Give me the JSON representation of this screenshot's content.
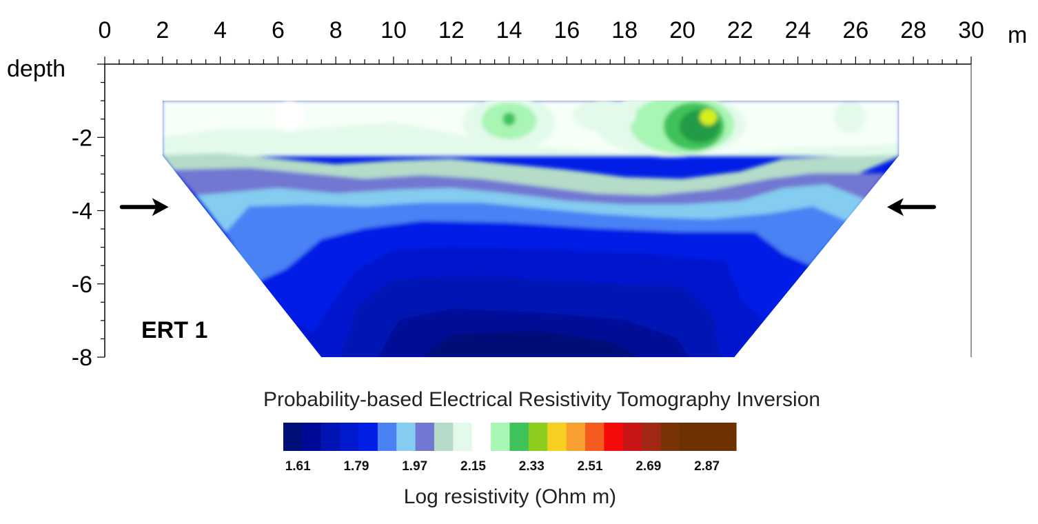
{
  "chart_data": {
    "type": "heatmap",
    "title": "Probability-based Electrical Resistivity Tomography Inversion",
    "section_label": "ERT 1",
    "xlabel": "m",
    "ylabel": "depth",
    "x_unit": "m",
    "xlim": [
      0,
      30
    ],
    "ylim": [
      -8,
      0
    ],
    "x_ticks": [
      "0",
      "2",
      "4",
      "6",
      "8",
      "10",
      "12",
      "14",
      "16",
      "18",
      "20",
      "22",
      "24",
      "26",
      "28",
      "30"
    ],
    "x_tick_values": [
      0,
      2,
      4,
      6,
      8,
      10,
      12,
      14,
      16,
      18,
      20,
      22,
      24,
      26,
      28,
      30
    ],
    "y_ticks": [
      "-2",
      "-4",
      "-6",
      "-8"
    ],
    "y_tick_values": [
      -2,
      -4,
      -6,
      -8
    ],
    "section_outline": [
      [
        2,
        -1
      ],
      [
        27.5,
        -1
      ],
      [
        27.5,
        -2.5
      ],
      [
        21.8,
        -8
      ],
      [
        7.5,
        -8
      ],
      [
        2,
        -2.5
      ]
    ],
    "section_top_depth": -1,
    "section_bottom_depth": -8,
    "arrows": [
      {
        "name": "left-arrow",
        "direction": "right",
        "x": 1.4,
        "depth": -3.9
      },
      {
        "name": "right-arrow",
        "direction": "left",
        "x": 27.9,
        "depth": -3.9
      }
    ],
    "colorbar": {
      "label": "Log resistivity (Ohm m)",
      "tick_labels": [
        "1.61",
        "1.79",
        "1.97",
        "2.15",
        "2.33",
        "2.51",
        "2.69",
        "2.87"
      ],
      "tick_values": [
        1.61,
        1.79,
        1.97,
        2.15,
        2.33,
        2.51,
        2.69,
        2.87
      ],
      "min": 1.565,
      "max": 2.96,
      "colors": [
        "#000f78",
        "#000a96",
        "#0014b4",
        "#0019cd",
        "#001ee6",
        "#4a82f4",
        "#84ccf0",
        "#7277d2",
        "#b4dcc8",
        "#e3faea",
        "#ffffff",
        "#a8f5b4",
        "#3fc25a",
        "#8ccd1e",
        "#f5d020",
        "#f8a030",
        "#f55a1e",
        "#f50a0a",
        "#c81414",
        "#a02814",
        "#783205",
        "#6e3200",
        "#6e3200",
        "#6e3200"
      ]
    },
    "contour_layers": [
      {
        "name": "layer-top-white",
        "color": "#f6fff8",
        "poly": [
          [
            2,
            -1
          ],
          [
            27.5,
            -1
          ],
          [
            27.5,
            -2.5
          ],
          [
            2,
            -2.5
          ]
        ]
      },
      {
        "name": "layer-pale-green",
        "color": "#e3faea",
        "poly": [
          [
            2,
            -2
          ],
          [
            4,
            -1.8
          ],
          [
            7,
            -1.8
          ],
          [
            10,
            -1.6
          ],
          [
            12,
            -1.9
          ],
          [
            14,
            -2.2
          ],
          [
            17,
            -2.4
          ],
          [
            19,
            -2.5
          ],
          [
            21,
            -2.5
          ],
          [
            24,
            -2.3
          ],
          [
            27.5,
            -2.2
          ],
          [
            27.5,
            -2.5
          ],
          [
            2,
            -2.5
          ]
        ]
      },
      {
        "name": "layer-mint",
        "color": "#b4dcc8",
        "poly": [
          [
            2,
            -2.5
          ],
          [
            4,
            -2.45
          ],
          [
            6,
            -2.6
          ],
          [
            8,
            -2.75
          ],
          [
            10,
            -2.65
          ],
          [
            12,
            -2.6
          ],
          [
            14,
            -2.75
          ],
          [
            16,
            -2.9
          ],
          [
            18,
            -3.1
          ],
          [
            20,
            -3.15
          ],
          [
            22,
            -2.95
          ],
          [
            23.5,
            -2.6
          ],
          [
            25,
            -2.55
          ],
          [
            27.5,
            -2.5
          ],
          [
            27.5,
            -2.5
          ],
          [
            26,
            -3.0
          ],
          [
            24.5,
            -3.0
          ],
          [
            23,
            -3.15
          ],
          [
            21,
            -3.45
          ],
          [
            19,
            -3.6
          ],
          [
            17,
            -3.55
          ],
          [
            15,
            -3.35
          ],
          [
            13,
            -3.15
          ],
          [
            11,
            -3.05
          ],
          [
            9,
            -3.15
          ],
          [
            7,
            -3.0
          ],
          [
            5,
            -2.85
          ],
          [
            2.4,
            -2.9
          ]
        ]
      },
      {
        "name": "layer-lavender",
        "color": "#7277d2",
        "poly": [
          [
            2.4,
            -2.9
          ],
          [
            5,
            -2.85
          ],
          [
            7,
            -3.0
          ],
          [
            9,
            -3.15
          ],
          [
            11,
            -3.05
          ],
          [
            13,
            -3.15
          ],
          [
            15,
            -3.35
          ],
          [
            17,
            -3.55
          ],
          [
            19,
            -3.6
          ],
          [
            21,
            -3.45
          ],
          [
            23,
            -3.15
          ],
          [
            24.5,
            -3.0
          ],
          [
            26,
            -3.0
          ],
          [
            27,
            -3.0
          ],
          [
            26.3,
            -3.7
          ],
          [
            25,
            -3.3
          ],
          [
            23.5,
            -3.4
          ],
          [
            22,
            -3.75
          ],
          [
            20,
            -3.85
          ],
          [
            18,
            -3.85
          ],
          [
            16,
            -3.75
          ],
          [
            14,
            -3.55
          ],
          [
            12,
            -3.4
          ],
          [
            10,
            -3.45
          ],
          [
            8,
            -3.55
          ],
          [
            6,
            -3.4
          ],
          [
            3.2,
            -3.6
          ]
        ]
      },
      {
        "name": "layer-light-blue",
        "color": "#84ccf0",
        "poly": [
          [
            3.2,
            -3.6
          ],
          [
            6,
            -3.4
          ],
          [
            8,
            -3.55
          ],
          [
            10,
            -3.45
          ],
          [
            12,
            -3.4
          ],
          [
            14,
            -3.55
          ],
          [
            16,
            -3.75
          ],
          [
            18,
            -3.85
          ],
          [
            20,
            -3.85
          ],
          [
            22,
            -3.75
          ],
          [
            23.5,
            -3.4
          ],
          [
            25,
            -3.3
          ],
          [
            26.3,
            -3.7
          ],
          [
            25.7,
            -4.3
          ],
          [
            24.5,
            -3.9
          ],
          [
            23,
            -4.1
          ],
          [
            21,
            -4.25
          ],
          [
            19,
            -4.2
          ],
          [
            17,
            -4.1
          ],
          [
            15,
            -3.95
          ],
          [
            13,
            -3.8
          ],
          [
            11,
            -3.8
          ],
          [
            9,
            -3.9
          ],
          [
            7,
            -3.85
          ],
          [
            5,
            -3.9
          ],
          [
            4.2,
            -4.6
          ]
        ]
      },
      {
        "name": "layer-cornflower",
        "color": "#4a82f4",
        "poly": [
          [
            4.2,
            -4.6
          ],
          [
            5,
            -3.9
          ],
          [
            7,
            -3.85
          ],
          [
            9,
            -3.9
          ],
          [
            11,
            -3.8
          ],
          [
            13,
            -3.8
          ],
          [
            15,
            -3.95
          ],
          [
            17,
            -4.1
          ],
          [
            19,
            -4.2
          ],
          [
            21,
            -4.25
          ],
          [
            23,
            -4.1
          ],
          [
            24.5,
            -3.9
          ],
          [
            25.7,
            -4.3
          ],
          [
            24.4,
            -5.5
          ],
          [
            23.5,
            -5.2
          ],
          [
            22.5,
            -4.6
          ],
          [
            20,
            -4.6
          ],
          [
            17,
            -4.5
          ],
          [
            14,
            -4.35
          ],
          [
            11,
            -4.3
          ],
          [
            9,
            -4.5
          ],
          [
            7.5,
            -4.8
          ],
          [
            6.3,
            -5.6
          ],
          [
            5.2,
            -6.0
          ]
        ]
      },
      {
        "name": "layer-blue",
        "color": "#001ee6",
        "poly": [
          [
            5.2,
            -6.0
          ],
          [
            6.3,
            -5.6
          ],
          [
            7.5,
            -4.8
          ],
          [
            9,
            -4.5
          ],
          [
            11,
            -4.3
          ],
          [
            14,
            -4.35
          ],
          [
            17,
            -4.5
          ],
          [
            20,
            -4.6
          ],
          [
            22.5,
            -4.6
          ],
          [
            23.5,
            -5.2
          ],
          [
            24.4,
            -5.5
          ],
          [
            22.8,
            -7.0
          ],
          [
            22,
            -6.4
          ],
          [
            21.5,
            -5.4
          ],
          [
            19,
            -5.2
          ],
          [
            16,
            -5.1
          ],
          [
            12,
            -5.0
          ],
          [
            10,
            -5.1
          ],
          [
            8.8,
            -5.6
          ],
          [
            8,
            -6.4
          ],
          [
            7.2,
            -7.4
          ],
          [
            6.5,
            -7.0
          ]
        ]
      },
      {
        "name": "layer-deep-blue",
        "color": "#0019cd",
        "poly": [
          [
            6.5,
            -7.0
          ],
          [
            7.2,
            -7.4
          ],
          [
            8,
            -6.4
          ],
          [
            8.8,
            -5.6
          ],
          [
            10,
            -5.1
          ],
          [
            12,
            -5.0
          ],
          [
            16,
            -5.1
          ],
          [
            19,
            -5.2
          ],
          [
            21.5,
            -5.4
          ],
          [
            22,
            -6.4
          ],
          [
            22.8,
            -7.0
          ],
          [
            21.8,
            -8
          ],
          [
            7.5,
            -8
          ]
        ]
      },
      {
        "name": "layer-darker-blue",
        "color": "#0014b4",
        "poly": [
          [
            8.2,
            -8
          ],
          [
            8.8,
            -6.6
          ],
          [
            10,
            -5.9
          ],
          [
            13,
            -5.8
          ],
          [
            17,
            -6.0
          ],
          [
            20,
            -6.1
          ],
          [
            21,
            -6.8
          ],
          [
            21.3,
            -8
          ]
        ]
      },
      {
        "name": "layer-navy",
        "color": "#000a96",
        "poly": [
          [
            9.5,
            -8
          ],
          [
            10.2,
            -7.0
          ],
          [
            12,
            -6.7
          ],
          [
            15,
            -6.8
          ],
          [
            18,
            -7.0
          ],
          [
            19.8,
            -7.5
          ],
          [
            20.2,
            -8
          ]
        ]
      },
      {
        "name": "layer-darkest-navy",
        "color": "#000f78",
        "poly": [
          [
            11,
            -8
          ],
          [
            12,
            -7.4
          ],
          [
            15,
            -7.3
          ],
          [
            17.5,
            -7.6
          ],
          [
            18.5,
            -8
          ]
        ]
      }
    ],
    "anomalies": [
      {
        "name": "anomaly-x14-outer",
        "color": "#e3faea",
        "cx": 14.0,
        "cy": -1.6,
        "rx": 1.6,
        "ry": 0.75
      },
      {
        "name": "anomaly-x14-mid",
        "color": "#a8f5b4",
        "cx": 14.0,
        "cy": -1.55,
        "rx": 0.95,
        "ry": 0.5
      },
      {
        "name": "anomaly-x14-core",
        "color": "#3fc25a",
        "cx": 14.0,
        "cy": -1.5,
        "rx": 0.22,
        "ry": 0.18
      },
      {
        "name": "anomaly-x20-outer",
        "color": "#e3faea",
        "cx": 19.6,
        "cy": -1.65,
        "rx": 2.6,
        "ry": 0.9
      },
      {
        "name": "anomaly-x20-mid",
        "color": "#a8f5b4",
        "cx": 20.0,
        "cy": -1.65,
        "rx": 1.8,
        "ry": 0.8
      },
      {
        "name": "anomaly-x20-green",
        "color": "#3fc25a",
        "cx": 20.4,
        "cy": -1.7,
        "rx": 1.05,
        "ry": 0.65
      },
      {
        "name": "anomaly-x20-darkgreen",
        "color": "#239b46",
        "cx": 20.6,
        "cy": -1.7,
        "rx": 0.7,
        "ry": 0.45
      },
      {
        "name": "anomaly-x20-core",
        "color": "#d6f01e",
        "cx": 20.9,
        "cy": -1.45,
        "rx": 0.3,
        "ry": 0.22
      },
      {
        "name": "anomaly-x6-white",
        "color": "#ffffff",
        "cx": 6.4,
        "cy": -1.4,
        "rx": 0.55,
        "ry": 0.45
      },
      {
        "name": "anomaly-x26-pale",
        "color": "#e3faea",
        "cx": 25.8,
        "cy": -1.45,
        "rx": 0.55,
        "ry": 0.45
      },
      {
        "name": "anomaly-x17-pale",
        "color": "#e3faea",
        "cx": 17.3,
        "cy": -1.4,
        "rx": 1.1,
        "ry": 0.45
      }
    ]
  }
}
